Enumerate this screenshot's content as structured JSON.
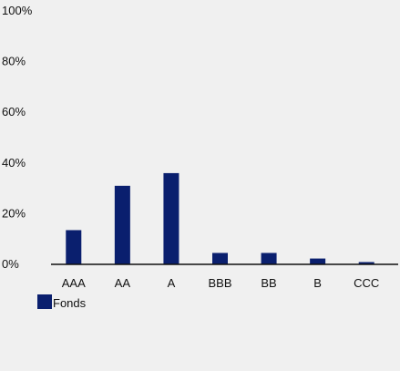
{
  "chart_data": {
    "type": "bar",
    "title": "",
    "xlabel": "",
    "ylabel": "",
    "categories": [
      "AAA",
      "AA",
      "A",
      "BBB",
      "BB",
      "B",
      "CCC"
    ],
    "series": [
      {
        "name": "Fonds",
        "values": [
          13.5,
          31,
          36,
          4.5,
          4.5,
          2.3,
          0.9
        ],
        "color": "#0a1f6e"
      }
    ],
    "ylim": [
      0,
      100
    ],
    "yticks": [
      0,
      20,
      40,
      60,
      80,
      100
    ],
    "ytick_labels": [
      "0%",
      "20%",
      "40%",
      "60%",
      "80%",
      "100%"
    ],
    "grid": false,
    "legend_position": "bottom-left",
    "axis_color": "#111111",
    "background": "#f0f0f0"
  }
}
